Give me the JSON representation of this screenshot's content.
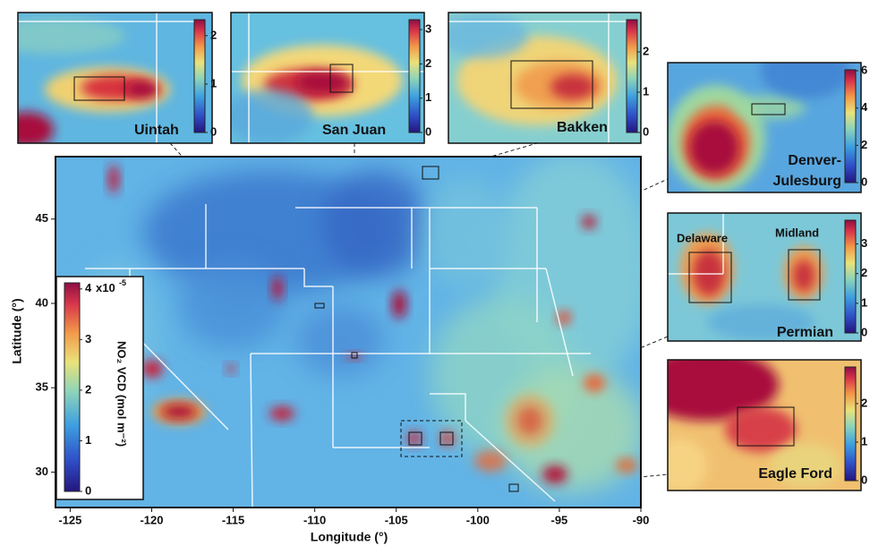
{
  "main_map": {
    "x_label": "Longitude (°)",
    "y_label": "Latitude (°)",
    "xlim": [
      -125.9,
      -90
    ],
    "ylim": [
      27.9,
      48.7
    ],
    "xticks": [
      -125,
      -120,
      -115,
      -110,
      -105,
      -100,
      -95,
      -90
    ],
    "yticks": [
      30,
      35,
      40,
      45
    ],
    "colorbar": {
      "lim": [
        0,
        4.12
      ],
      "ticks": [
        0,
        1,
        2,
        3,
        4
      ],
      "multiplier": "x10",
      "exponent": "-5",
      "label": "NO₂ VCD (mol m⁻²)"
    }
  },
  "insets": [
    {
      "label_lines": [
        "Uintah"
      ],
      "colorbar": {
        "lim": [
          0,
          2.33
        ],
        "ticks": [
          0,
          1,
          2
        ]
      }
    },
    {
      "label_lines": [
        "San Juan"
      ],
      "colorbar": {
        "lim": [
          0,
          3.29
        ],
        "ticks": [
          0,
          1,
          2,
          3
        ]
      }
    },
    {
      "label_lines": [
        "Bakken"
      ],
      "colorbar": {
        "lim": [
          0,
          2.8
        ],
        "ticks": [
          0,
          1,
          2
        ]
      }
    },
    {
      "label_lines": [
        "Denver-",
        "Julesburg"
      ],
      "colorbar": {
        "lim": [
          0,
          6.05
        ],
        "ticks": [
          0,
          2,
          4,
          6
        ]
      }
    },
    {
      "label_lines": [
        "Permian"
      ],
      "sub_labels": [
        "Delaware",
        "Midland"
      ],
      "colorbar": {
        "lim": [
          0,
          3.8
        ],
        "ticks": [
          0,
          1,
          2,
          3
        ]
      }
    },
    {
      "label_lines": [
        "Eagle Ford"
      ],
      "colorbar": {
        "lim": [
          0,
          2.95
        ],
        "ticks": [
          0,
          1,
          2
        ]
      }
    }
  ]
}
